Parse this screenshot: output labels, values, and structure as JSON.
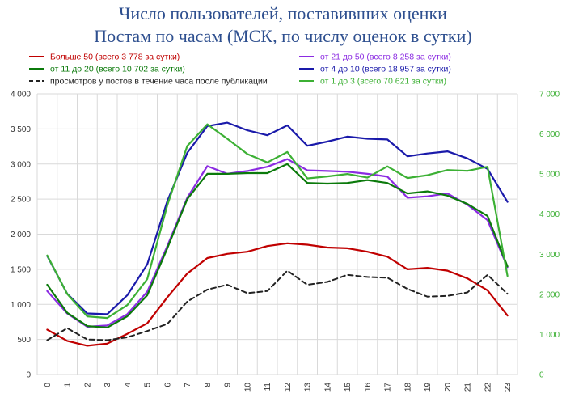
{
  "chart_data": {
    "type": "line",
    "title": "Число пользователей, поставивших оценки",
    "subtitle": "Постам по часам (МСК, по числу оценок в сутки)",
    "x": [
      "0",
      "1",
      "2",
      "3",
      "4",
      "5",
      "6",
      "7",
      "8",
      "9",
      "10",
      "11",
      "12",
      "13",
      "14",
      "15",
      "16",
      "17",
      "18",
      "19",
      "20",
      "21",
      "22",
      "23"
    ],
    "y_left": {
      "ylim": [
        0,
        4000
      ],
      "ticks": [
        "0",
        "500",
        "1 000",
        "1 500",
        "2 000",
        "2 500",
        "3 000",
        "3 500",
        "4 000"
      ]
    },
    "y_right": {
      "ylim": [
        0,
        7000
      ],
      "ticks": [
        "0",
        "1 000",
        "2 000",
        "3 000",
        "4 000",
        "5 000",
        "6 000",
        "7 000"
      ]
    },
    "grid": true,
    "legend_position": "top",
    "series": [
      {
        "name": "Больше 50 (всего 3 778 за сутки)",
        "color": "#c00000",
        "axis": "left",
        "dashed": false,
        "values": [
          640,
          480,
          410,
          440,
          580,
          730,
          1100,
          1440,
          1660,
          1720,
          1750,
          1830,
          1870,
          1850,
          1810,
          1800,
          1750,
          1680,
          1500,
          1520,
          1480,
          1370,
          1200,
          840
        ]
      },
      {
        "name": "от 21 до 50 (всего 8 258 за сутки)",
        "color": "#8b2be2",
        "axis": "left",
        "dashed": false,
        "values": [
          1190,
          870,
          680,
          700,
          860,
          1180,
          1830,
          2520,
          2970,
          2860,
          2900,
          2960,
          3070,
          2910,
          2900,
          2890,
          2860,
          2820,
          2520,
          2540,
          2580,
          2420,
          2200,
          1530
        ]
      },
      {
        "name": "от 11 до 20 (всего 10 702 за сутки)",
        "color": "#0b7a0b",
        "axis": "left",
        "dashed": false,
        "values": [
          1280,
          880,
          690,
          670,
          830,
          1130,
          1800,
          2500,
          2860,
          2860,
          2870,
          2870,
          3000,
          2730,
          2720,
          2730,
          2770,
          2730,
          2580,
          2610,
          2550,
          2430,
          2260,
          1540
        ]
      },
      {
        "name": "от 4 до 10 (всего 18 957 за сутки)",
        "color": "#1a1aaa",
        "axis": "left",
        "dashed": false,
        "values": [
          1690,
          1150,
          870,
          860,
          1130,
          1570,
          2470,
          3160,
          3540,
          3590,
          3480,
          3410,
          3550,
          3260,
          3320,
          3390,
          3360,
          3350,
          3110,
          3150,
          3180,
          3080,
          2930,
          2460
        ]
      },
      {
        "name": "от 1 до 3 (всего 70 621 за сутки)",
        "color": "#3cb034",
        "axis": "right",
        "dashed": false,
        "values": [
          2970,
          2010,
          1450,
          1410,
          1730,
          2380,
          4220,
          5700,
          6240,
          5880,
          5500,
          5290,
          5550,
          4890,
          4940,
          5000,
          4910,
          5190,
          4900,
          4970,
          5100,
          5080,
          5180,
          2460
        ]
      },
      {
        "name": "просмотров у постов в течение часа после публикации",
        "color": "#222222",
        "axis": "left",
        "dashed": true,
        "values": [
          490,
          660,
          500,
          490,
          530,
          620,
          720,
          1040,
          1210,
          1280,
          1160,
          1190,
          1480,
          1280,
          1320,
          1420,
          1390,
          1380,
          1220,
          1110,
          1120,
          1170,
          1420,
          1150
        ]
      }
    ]
  }
}
